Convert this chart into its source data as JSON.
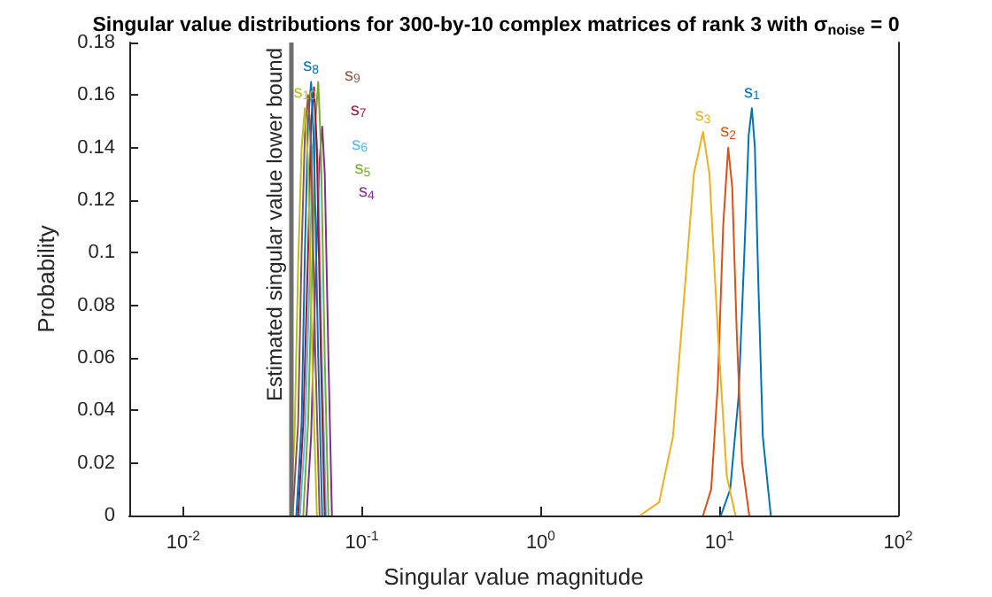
{
  "chart_data": {
    "type": "line",
    "title": "Singular value distributions for 300-by-10 complex matrices of rank 3 with σ$_{noise}$ = 0",
    "xlabel": "Singular value magnitude",
    "ylabel": "Probability",
    "log": "x",
    "xlim": [
      0.005,
      100
    ],
    "xticks": [
      {
        "value": 0.01,
        "label": "10$^{-2}$"
      },
      {
        "value": 0.1,
        "label": "10$^{-1}$"
      },
      {
        "value": 1,
        "label": "10$^{0}$"
      },
      {
        "value": 10,
        "label": "10$^{1}$"
      },
      {
        "value": 100,
        "label": "10$^{2}$"
      }
    ],
    "ylim": [
      0,
      0.18
    ],
    "yticks": [
      0,
      0.02,
      0.04,
      0.06,
      0.08,
      0.1,
      0.12,
      0.14,
      0.16,
      0.18
    ],
    "grid": false,
    "legend": false,
    "marker": "none",
    "line_style": "solid",
    "ref_lines": [
      {
        "axis": "x",
        "value": 0.04,
        "label": "Estimated singular value lower bound",
        "color": "#6e6e6e"
      }
    ],
    "series": [
      {
        "name": "s$_{1}$",
        "color": "#0072bd",
        "x": [
          10.2,
          11.5,
          12.8,
          13.8,
          14.6,
          15.2,
          15.8,
          16.5,
          17.5,
          19.4
        ],
        "values": [
          0,
          0.01,
          0.045,
          0.1,
          0.145,
          0.155,
          0.14,
          0.09,
          0.03,
          0
        ]
      },
      {
        "name": "s$_{2}$",
        "color": "#d95319",
        "x": [
          8.1,
          9.0,
          9.8,
          10.5,
          11.2,
          11.8,
          12.5,
          13.4,
          14.7
        ],
        "values": [
          0,
          0.01,
          0.05,
          0.11,
          0.14,
          0.125,
          0.07,
          0.02,
          0
        ]
      },
      {
        "name": "s$_{3}$",
        "color": "#edb120",
        "x": [
          3.6,
          4.6,
          5.5,
          6.3,
          7.2,
          8.1,
          8.8,
          9.8,
          11,
          12.3
        ],
        "values": [
          0,
          0.005,
          0.03,
          0.08,
          0.13,
          0.146,
          0.13,
          0.07,
          0.015,
          0
        ]
      },
      {
        "name": "s$_{4}$",
        "color": "#7e2f8e",
        "x": [
          0.049,
          0.052,
          0.055,
          0.058,
          0.06,
          0.062,
          0.065,
          0.068
        ],
        "values": [
          0,
          0.03,
          0.09,
          0.135,
          0.148,
          0.13,
          0.06,
          0
        ]
      },
      {
        "name": "s$_{5}$",
        "color": "#77ac30",
        "x": [
          0.047,
          0.05,
          0.053,
          0.055,
          0.057,
          0.059,
          0.062,
          0.065
        ],
        "values": [
          0,
          0.035,
          0.1,
          0.15,
          0.165,
          0.14,
          0.06,
          0
        ]
      },
      {
        "name": "s$_{6}$",
        "color": "#4dbeee",
        "x": [
          0.045,
          0.048,
          0.051,
          0.053,
          0.055,
          0.057,
          0.06,
          0.063
        ],
        "values": [
          0,
          0.03,
          0.09,
          0.14,
          0.15,
          0.13,
          0.055,
          0
        ]
      },
      {
        "name": "s$_{7}$",
        "color": "#a2142f",
        "x": [
          0.044,
          0.047,
          0.05,
          0.052,
          0.054,
          0.056,
          0.059,
          0.062
        ],
        "values": [
          0,
          0.035,
          0.1,
          0.15,
          0.163,
          0.14,
          0.06,
          0
        ]
      },
      {
        "name": "s$_{8}$",
        "color": "#0072bd",
        "x": [
          0.043,
          0.046,
          0.048,
          0.05,
          0.052,
          0.054,
          0.057,
          0.06
        ],
        "values": [
          0,
          0.035,
          0.1,
          0.15,
          0.165,
          0.14,
          0.06,
          0
        ]
      },
      {
        "name": "s$_{9}$",
        "color": "#8c564b",
        "x": [
          0.041,
          0.044,
          0.046,
          0.048,
          0.05,
          0.052,
          0.055,
          0.058
        ],
        "values": [
          0,
          0.035,
          0.1,
          0.145,
          0.16,
          0.14,
          0.06,
          0
        ]
      },
      {
        "name": "s$_{10}$",
        "color": "#bcbd22",
        "x": [
          0.04,
          0.042,
          0.044,
          0.046,
          0.048,
          0.05,
          0.053,
          0.056
        ],
        "values": [
          0,
          0.03,
          0.095,
          0.14,
          0.155,
          0.135,
          0.055,
          0
        ]
      }
    ]
  }
}
